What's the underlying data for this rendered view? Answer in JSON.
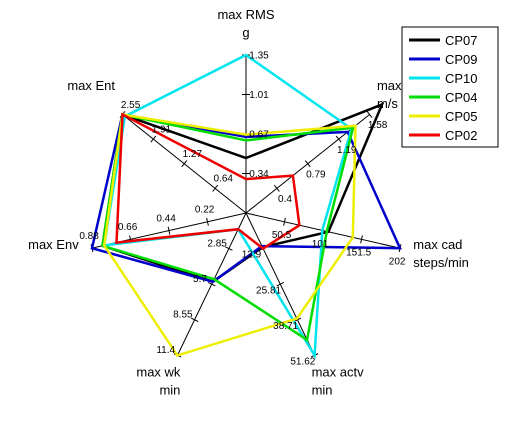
{
  "chart_data": {
    "type": "radar",
    "axes": [
      {
        "label": "max RMS",
        "unit": "g",
        "ticks": [
          "0.34",
          "0.67",
          "1.01",
          "1.35"
        ],
        "max": 1.35
      },
      {
        "label": "max sp",
        "unit": "m/s",
        "ticks": [
          "0.4",
          "0.79",
          "1.19",
          "1.58"
        ],
        "max": 1.58
      },
      {
        "label": "max cad",
        "unit": "steps/min",
        "ticks": [
          "50.5",
          "101",
          "151.5",
          "202"
        ],
        "max": 202
      },
      {
        "label": "max actv",
        "unit": "min",
        "ticks": [
          "12.9",
          "25.81",
          "38.71",
          "51.62"
        ],
        "max": 51.62
      },
      {
        "label": "max wk",
        "unit": "min",
        "ticks": [
          "2.85",
          "5.7",
          "8.55",
          "11.4"
        ],
        "max": 11.4
      },
      {
        "label": "max Env",
        "unit": "",
        "ticks": [
          "0.22",
          "0.44",
          "0.66",
          "0.88"
        ],
        "max": 0.88
      },
      {
        "label": "max Ent",
        "unit": "",
        "ticks": [
          "0.64",
          "1.27",
          "1.91",
          "2.55"
        ],
        "max": 2.55
      }
    ],
    "series": [
      {
        "name": "CP07",
        "color": "#000000",
        "values": [
          0.47,
          1.74,
          108,
          12.4,
          5.5,
          0.82,
          2.55
        ]
      },
      {
        "name": "CP09",
        "color": "#0000cc",
        "values": [
          0.65,
          1.3,
          202,
          12.0,
          5.5,
          0.88,
          2.55
        ]
      },
      {
        "name": "CP10",
        "color": "#00e5ee",
        "values": [
          1.35,
          1.35,
          100,
          51.62,
          1.3,
          0.81,
          2.5
        ]
      },
      {
        "name": "CP04",
        "color": "#00dd00",
        "values": [
          0.62,
          1.37,
          106,
          46.0,
          5.3,
          0.82,
          2.55
        ]
      },
      {
        "name": "CP05",
        "color": "#eeee00",
        "values": [
          0.67,
          1.4,
          140,
          38.3,
          11.4,
          0.81,
          2.55
        ]
      },
      {
        "name": "CP02",
        "color": "#ee0000",
        "values": [
          0.29,
          0.6,
          70,
          12.9,
          1.3,
          0.74,
          2.55
        ]
      }
    ],
    "legend_position": "top-right",
    "grid": false
  }
}
